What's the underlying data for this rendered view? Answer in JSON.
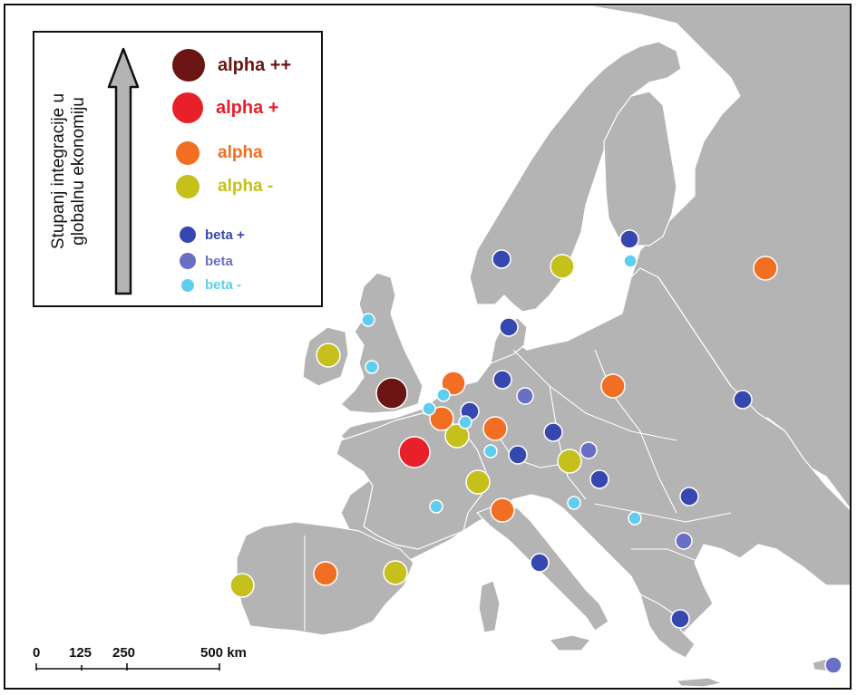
{
  "legend": {
    "title_line1": "Stupanj integracije u",
    "title_line2": "globalnu ekonomiju",
    "items": [
      {
        "label": "alpha ++",
        "color": "#6b1414",
        "text_color": "#6b1414",
        "size": "xl"
      },
      {
        "label": "alpha +",
        "color": "#e8202a",
        "text_color": "#e8202a",
        "size": "l"
      },
      {
        "label": "alpha",
        "color": "#f26e22",
        "text_color": "#f26e22",
        "size": "m"
      },
      {
        "label": "alpha -",
        "color": "#c5c01b",
        "text_color": "#c5c01b",
        "size": "m"
      },
      {
        "label": "beta +",
        "color": "#3747b0",
        "text_color": "#3747b0",
        "size": "s"
      },
      {
        "label": "beta",
        "color": "#6a6fc6",
        "text_color": "#6a6fc6",
        "size": "s"
      },
      {
        "label": "beta -",
        "color": "#5fcdef",
        "text_color": "#5fcdef",
        "size": "xs"
      }
    ]
  },
  "scale": {
    "labels": [
      "0",
      "125",
      "250",
      "500 km"
    ]
  },
  "colors": {
    "land": "#b4b4b4",
    "alpha_pp": "#6b1414",
    "alpha_p": "#e8202a",
    "alpha": "#f26e22",
    "alpha_m": "#c5c01b",
    "beta_p": "#3747b0",
    "beta": "#6a6fc6",
    "beta_m": "#5fcdef"
  }
}
